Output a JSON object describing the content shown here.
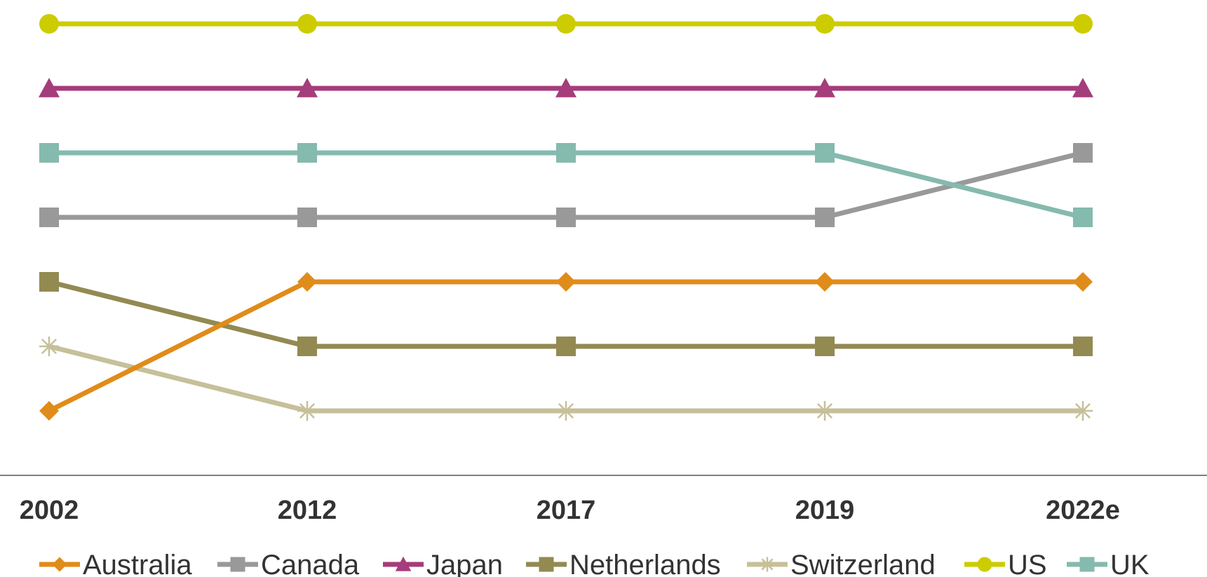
{
  "chart_data": {
    "type": "line",
    "title": "",
    "xlabel": "",
    "ylabel": "",
    "categories": [
      "2002",
      "2012",
      "2017",
      "2019",
      "2022e"
    ],
    "y_axis": "rank (1 = top), not printed",
    "grid": false,
    "legend_position": "bottom",
    "series": [
      {
        "name": "Australia",
        "marker": "diamond",
        "color": "#E08C1A",
        "values": [
          7,
          5,
          5,
          5,
          5
        ]
      },
      {
        "name": "Canada",
        "marker": "square",
        "color": "#999999",
        "values": [
          4,
          4,
          4,
          4,
          3
        ]
      },
      {
        "name": "Japan",
        "marker": "triangle",
        "color": "#A53C7B",
        "values": [
          2,
          2,
          2,
          2,
          2
        ]
      },
      {
        "name": "Netherlands",
        "marker": "square",
        "color": "#938A52",
        "values": [
          5,
          6,
          6,
          6,
          6
        ]
      },
      {
        "name": "Switzerland",
        "marker": "star",
        "color": "#C6C09A",
        "values": [
          6,
          7,
          7,
          7,
          7
        ]
      },
      {
        "name": "US",
        "marker": "circle",
        "color": "#CCCC00",
        "values": [
          1,
          1,
          1,
          1,
          1
        ]
      },
      {
        "name": "UK",
        "marker": "square",
        "color": "#85BAAE",
        "values": [
          3,
          3,
          3,
          3,
          4
        ]
      }
    ]
  }
}
